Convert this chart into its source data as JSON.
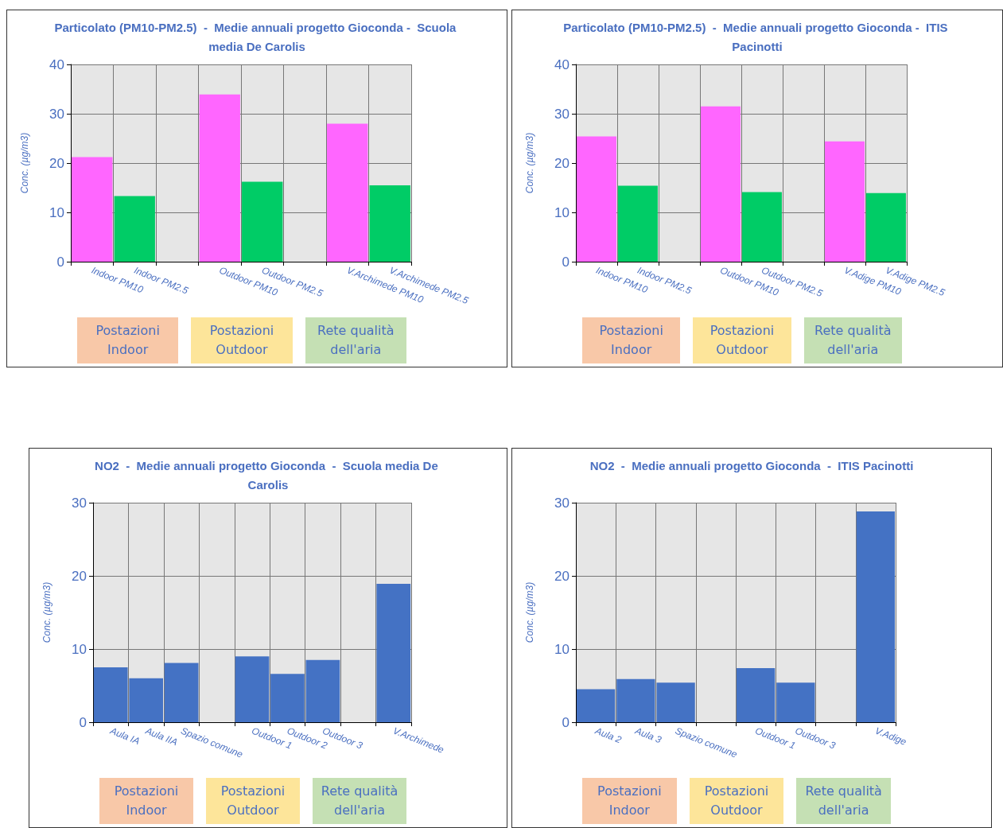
{
  "chart_data": [
    {
      "type": "bar",
      "title": "Particolato (PM10-PM2.5)  -  Medie annuali progetto Gioconda -  Scuola media De Carolis",
      "ylabel": "Conc. (µg/m3)",
      "categories": [
        "Indoor PM10",
        "Indoor PM2.5",
        null,
        "Outdoor PM10",
        "Outdoor PM2.5",
        null,
        "V.Archimede PM10",
        "V.Archimede PM2.5"
      ],
      "values": [
        21.2,
        13.3,
        null,
        33.9,
        16.2,
        null,
        28.0,
        15.5
      ],
      "colors": [
        "#ff66ff",
        "#00cc66",
        "#ff66ff",
        "#ff66ff",
        "#00cc66",
        "#00cc66",
        "#ff66ff",
        "#00cc66"
      ],
      "ylim": [
        0,
        40
      ],
      "yticks": [
        0,
        10,
        20,
        30,
        40
      ],
      "grid": true,
      "annotations": [
        "Postazioni Indoor",
        "Postazioni Outdoor",
        "Rete qualità dell'aria"
      ]
    },
    {
      "type": "bar",
      "title": "Particolato (PM10-PM2.5)  -  Medie annuali progetto Gioconda -  ITIS Pacinotti",
      "ylabel": "Conc. (µg/m3)",
      "categories": [
        "Indoor PM10",
        "Indoor PM2.5",
        null,
        "Outdoor PM10",
        "Outdoor PM2.5",
        null,
        "V.Adige PM10",
        "V.Adige PM2.5"
      ],
      "values": [
        25.4,
        15.4,
        null,
        31.5,
        14.1,
        null,
        24.4,
        13.9
      ],
      "colors": [
        "#ff66ff",
        "#00cc66",
        "#ff66ff",
        "#ff66ff",
        "#00cc66",
        "#00cc66",
        "#ff66ff",
        "#00cc66"
      ],
      "ylim": [
        0,
        40
      ],
      "yticks": [
        0,
        10,
        20,
        30,
        40
      ],
      "grid": true,
      "annotations": [
        "Postazioni Indoor",
        "Postazioni Outdoor",
        "Rete qualità dell'aria"
      ]
    },
    {
      "type": "bar",
      "title": "NO2  -  Medie annuali progetto Gioconda  -  Scuola media De Carolis",
      "ylabel": "Conc. (µg/m3)",
      "categories": [
        "Aula IA",
        "Aula IIA",
        "Spazio comune",
        null,
        "Outdoor 1",
        "Outdoor 2",
        "Outdoor 3",
        null,
        "V.Archimede"
      ],
      "values": [
        7.5,
        6.0,
        8.1,
        null,
        9.0,
        6.6,
        8.5,
        null,
        18.9
      ],
      "colors": [
        "#4472c4",
        "#4472c4",
        "#4472c4",
        "#4472c4",
        "#4472c4",
        "#4472c4",
        "#4472c4",
        "#4472c4",
        "#4472c4"
      ],
      "ylim": [
        0,
        30
      ],
      "yticks": [
        0,
        10,
        20,
        30
      ],
      "grid": true,
      "annotations": [
        "Postazioni Indoor",
        "Postazioni Outdoor",
        "Rete qualità dell'aria"
      ]
    },
    {
      "type": "bar",
      "title": "NO2  -  Medie annuali progetto Gioconda  -  ITIS Pacinotti",
      "ylabel": "Conc. (µg/m3)",
      "categories": [
        "Aula 2",
        "Aula 3",
        "Spazio comune",
        null,
        "Outdoor 1",
        "Outdoor 3",
        null,
        "V.Adige"
      ],
      "values": [
        4.5,
        5.9,
        5.4,
        null,
        7.4,
        5.4,
        null,
        28.8
      ],
      "colors": [
        "#4472c4",
        "#4472c4",
        "#4472c4",
        "#4472c4",
        "#4472c4",
        "#4472c4",
        "#4472c4",
        "#4472c4"
      ],
      "ylim": [
        0,
        30
      ],
      "yticks": [
        0,
        10,
        20,
        30
      ],
      "grid": true,
      "annotations": [
        "Postazioni Indoor",
        "Postazioni Outdoor",
        "Rete qualità dell'aria"
      ]
    }
  ]
}
